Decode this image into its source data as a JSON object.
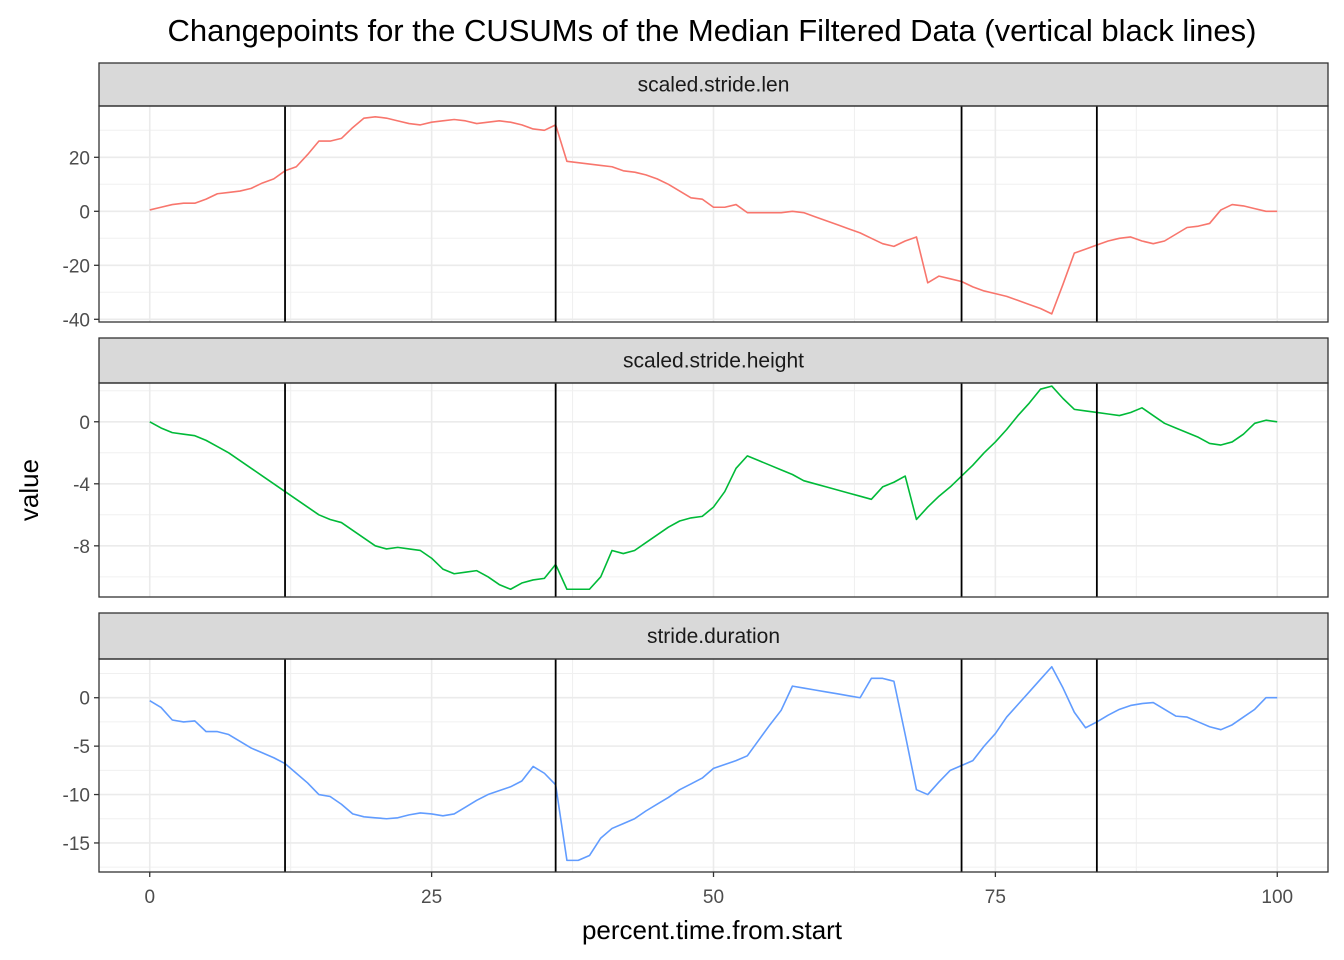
{
  "chart_data": {
    "type": "line",
    "title": "Changepoints for the CUSUMs of the Median Filtered Data (vertical black lines)",
    "xlabel": "percent.time.from.start",
    "ylabel": "value",
    "xlim": [
      -4.5,
      104.5
    ],
    "x_ticks": [
      0,
      25,
      50,
      75,
      100
    ],
    "x_tick_labels": [
      "0",
      "25",
      "50",
      "75",
      "100"
    ],
    "changepoints": [
      12,
      36,
      72,
      84
    ],
    "changepoint_color": "#000000",
    "grid": true,
    "legend": "none",
    "panels": [
      {
        "strip": "scaled.stride.len",
        "color": "#F8766D",
        "ylim": [
          -41,
          39
        ],
        "y_ticks": [
          -40,
          -20,
          0,
          20
        ],
        "y_tick_labels": [
          "-40",
          "-20",
          "0",
          "20"
        ],
        "x": [
          0,
          1,
          2,
          3,
          4,
          5,
          6,
          7,
          8,
          9,
          10,
          11,
          12,
          13,
          14,
          15,
          16,
          17,
          18,
          19,
          20,
          21,
          22,
          23,
          24,
          25,
          26,
          27,
          28,
          29,
          30,
          31,
          32,
          33,
          34,
          35,
          36,
          37,
          38,
          39,
          40,
          41,
          42,
          43,
          44,
          45,
          46,
          47,
          48,
          49,
          50,
          51,
          52,
          53,
          54,
          55,
          56,
          57,
          58,
          59,
          60,
          61,
          62,
          63,
          64,
          65,
          66,
          67,
          68,
          69,
          70,
          71,
          72,
          73,
          74,
          75,
          76,
          77,
          78,
          79,
          80,
          81,
          82,
          83,
          84,
          85,
          86,
          87,
          88,
          89,
          90,
          91,
          92,
          93,
          94,
          95,
          96,
          97,
          98,
          99,
          100
        ],
        "values": [
          0.5,
          1.5,
          2.5,
          3,
          3,
          4.5,
          6.5,
          7,
          7.5,
          8.5,
          10.5,
          12,
          15,
          16.5,
          21,
          26,
          26,
          27,
          31,
          34.5,
          35,
          34.5,
          33.5,
          32.5,
          32,
          33,
          33.5,
          34,
          33.5,
          32.5,
          33,
          33.5,
          33,
          32,
          30.5,
          30,
          32,
          18.5,
          18,
          17.5,
          17,
          16.5,
          15,
          14.5,
          13.5,
          12,
          10,
          7.5,
          5,
          4.5,
          1.5,
          1.5,
          2.5,
          -0.5,
          -0.5,
          -0.5,
          -0.5,
          0,
          -0.5,
          -2,
          -3.5,
          -5,
          -6.5,
          -8,
          -10,
          -12,
          -13,
          -11,
          -9.5,
          -26.5,
          -24,
          -25,
          -26,
          -28,
          -29.5,
          -30.5,
          -31.5,
          -33,
          -34.5,
          -36,
          -38,
          -27,
          -15.5,
          -14,
          -12.5,
          -11,
          -10,
          -9.5,
          -11,
          -12,
          -11,
          -8.5,
          -6,
          -5.5,
          -4.5,
          0.5,
          2.5,
          2,
          1,
          0,
          0
        ]
      },
      {
        "strip": "scaled.stride.height",
        "color": "#00BA38",
        "ylim": [
          -11.3,
          2.5
        ],
        "y_ticks": [
          -8,
          -4,
          0
        ],
        "y_tick_labels": [
          "-8",
          "-4",
          "0"
        ],
        "x": [
          0,
          1,
          2,
          3,
          4,
          5,
          6,
          7,
          8,
          9,
          10,
          11,
          12,
          13,
          14,
          15,
          16,
          17,
          18,
          19,
          20,
          21,
          22,
          23,
          24,
          25,
          26,
          27,
          28,
          29,
          30,
          31,
          32,
          33,
          34,
          35,
          36,
          37,
          38,
          39,
          40,
          41,
          42,
          43,
          44,
          45,
          46,
          47,
          48,
          49,
          50,
          51,
          52,
          53,
          54,
          55,
          56,
          57,
          58,
          59,
          60,
          61,
          62,
          63,
          64,
          65,
          66,
          67,
          68,
          69,
          70,
          71,
          72,
          73,
          74,
          75,
          76,
          77,
          78,
          79,
          80,
          81,
          82,
          83,
          84,
          85,
          86,
          87,
          88,
          89,
          90,
          91,
          92,
          93,
          94,
          95,
          96,
          97,
          98,
          99,
          100
        ],
        "values": [
          0,
          -0.4,
          -0.7,
          -0.8,
          -0.9,
          -1.2,
          -1.6,
          -2,
          -2.5,
          -3,
          -3.5,
          -4,
          -4.5,
          -5,
          -5.5,
          -6,
          -6.3,
          -6.5,
          -7,
          -7.5,
          -8,
          -8.2,
          -8.1,
          -8.2,
          -8.3,
          -8.8,
          -9.5,
          -9.8,
          -9.7,
          -9.6,
          -10,
          -10.5,
          -10.8,
          -10.4,
          -10.2,
          -10.1,
          -9.2,
          -10.8,
          -10.8,
          -10.8,
          -10,
          -8.3,
          -8.5,
          -8.3,
          -7.8,
          -7.3,
          -6.8,
          -6.4,
          -6.2,
          -6.1,
          -5.5,
          -4.5,
          -3,
          -2.2,
          -2.5,
          -2.8,
          -3.1,
          -3.4,
          -3.8,
          -4,
          -4.2,
          -4.4,
          -4.6,
          -4.8,
          -5,
          -4.2,
          -3.9,
          -3.5,
          -6.3,
          -5.5,
          -4.8,
          -4.2,
          -3.5,
          -2.8,
          -2,
          -1.3,
          -0.5,
          0.4,
          1.2,
          2.1,
          2.3,
          1.5,
          0.8,
          0.7,
          0.6,
          0.5,
          0.4,
          0.6,
          0.9,
          0.4,
          -0.1,
          -0.4,
          -0.7,
          -1,
          -1.4,
          -1.5,
          -1.3,
          -0.8,
          -0.1,
          0.1,
          0
        ]
      },
      {
        "strip": "stride.duration",
        "color": "#619CFF",
        "ylim": [
          -18,
          4
        ],
        "y_ticks": [
          -15,
          -10,
          -5,
          0
        ],
        "y_tick_labels": [
          "-15",
          "-10",
          "-5",
          "0"
        ],
        "x": [
          0,
          1,
          2,
          3,
          4,
          5,
          6,
          7,
          8,
          9,
          10,
          11,
          12,
          13,
          14,
          15,
          16,
          17,
          18,
          19,
          20,
          21,
          22,
          23,
          24,
          25,
          26,
          27,
          28,
          29,
          30,
          31,
          32,
          33,
          34,
          35,
          36,
          37,
          38,
          39,
          40,
          41,
          42,
          43,
          44,
          45,
          46,
          47,
          48,
          49,
          50,
          51,
          52,
          53,
          54,
          55,
          56,
          57,
          58,
          59,
          60,
          61,
          62,
          63,
          64,
          65,
          66,
          67,
          68,
          69,
          70,
          71,
          72,
          73,
          74,
          75,
          76,
          77,
          78,
          79,
          80,
          81,
          82,
          83,
          84,
          85,
          86,
          87,
          88,
          89,
          90,
          91,
          92,
          93,
          94,
          95,
          96,
          97,
          98,
          99,
          100
        ],
        "values": [
          -0.3,
          -1,
          -2.3,
          -2.5,
          -2.4,
          -3.5,
          -3.5,
          -3.8,
          -4.5,
          -5.2,
          -5.7,
          -6.2,
          -6.8,
          -7.8,
          -8.8,
          -10,
          -10.2,
          -11,
          -12,
          -12.3,
          -12.4,
          -12.5,
          -12.4,
          -12.1,
          -11.9,
          -12,
          -12.2,
          -12,
          -11.3,
          -10.6,
          -10,
          -9.6,
          -9.2,
          -8.6,
          -7.1,
          -7.8,
          -9,
          -16.8,
          -16.8,
          -16.3,
          -14.5,
          -13.5,
          -13,
          -12.5,
          -11.7,
          -11,
          -10.3,
          -9.5,
          -8.9,
          -8.3,
          -7.3,
          -6.9,
          -6.5,
          -6,
          -4.4,
          -2.8,
          -1.3,
          1.2,
          1,
          0.8,
          0.6,
          0.4,
          0.2,
          0,
          2,
          2,
          1.7,
          -3.8,
          -9.5,
          -10,
          -8.7,
          -7.5,
          -7,
          -6.5,
          -5,
          -3.7,
          -2,
          -0.7,
          0.6,
          1.9,
          3.2,
          1,
          -1.5,
          -3.1,
          -2.5,
          -1.8,
          -1.2,
          -0.8,
          -0.6,
          -0.5,
          -1.2,
          -1.9,
          -2,
          -2.5,
          -3,
          -3.3,
          -2.8,
          -2,
          -1.2,
          0,
          0
        ]
      }
    ]
  }
}
